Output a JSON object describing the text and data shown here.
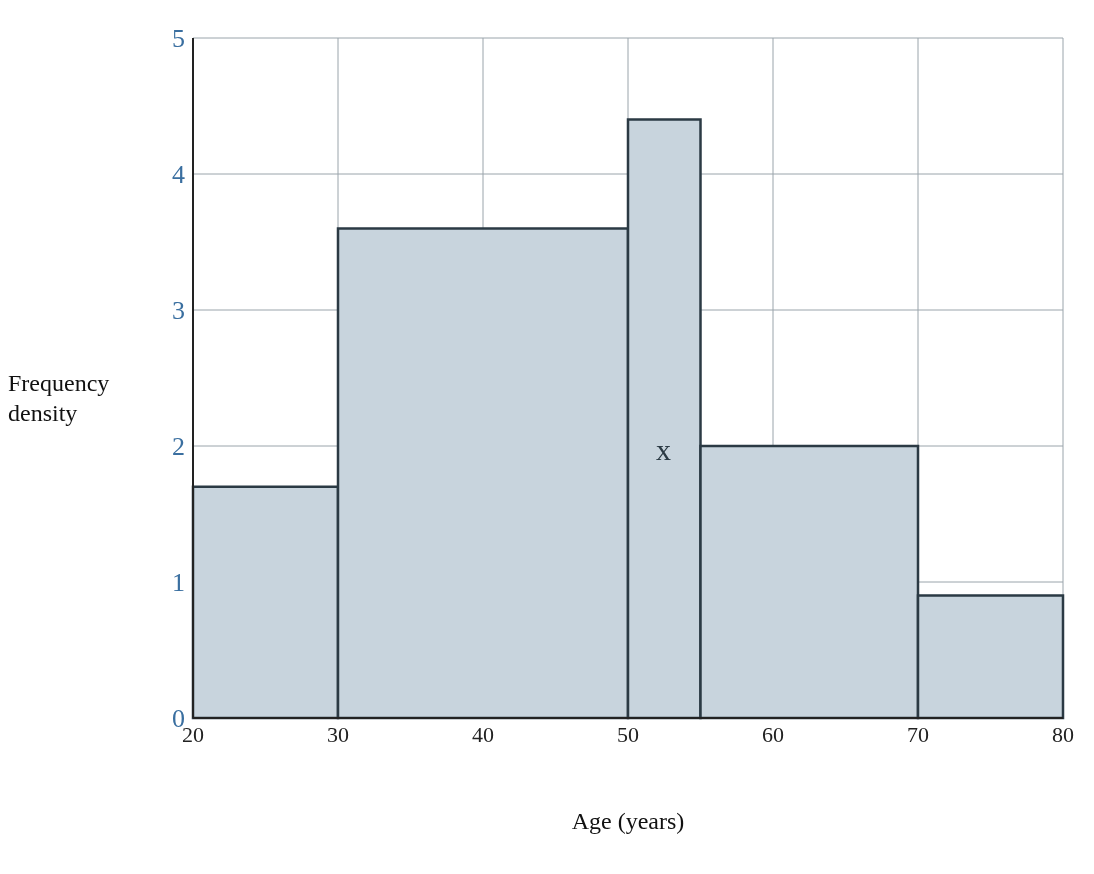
{
  "chart_data": {
    "type": "histogram",
    "bins": [
      20,
      30,
      50,
      55,
      70,
      80
    ],
    "values": [
      1.7,
      3.6,
      4.4,
      2.0,
      0.9
    ],
    "color": "#c8d4dd",
    "xlabel": "Age (years)",
    "ylabel": "Frequency density",
    "xlim": [
      20,
      80
    ],
    "xticks": [
      20,
      30,
      40,
      50,
      60,
      70,
      80
    ],
    "ylim": [
      0,
      5
    ],
    "yticks": [
      0,
      1,
      2,
      3,
      4,
      5
    ],
    "grid": true,
    "annotations": [
      "x"
    ]
  }
}
